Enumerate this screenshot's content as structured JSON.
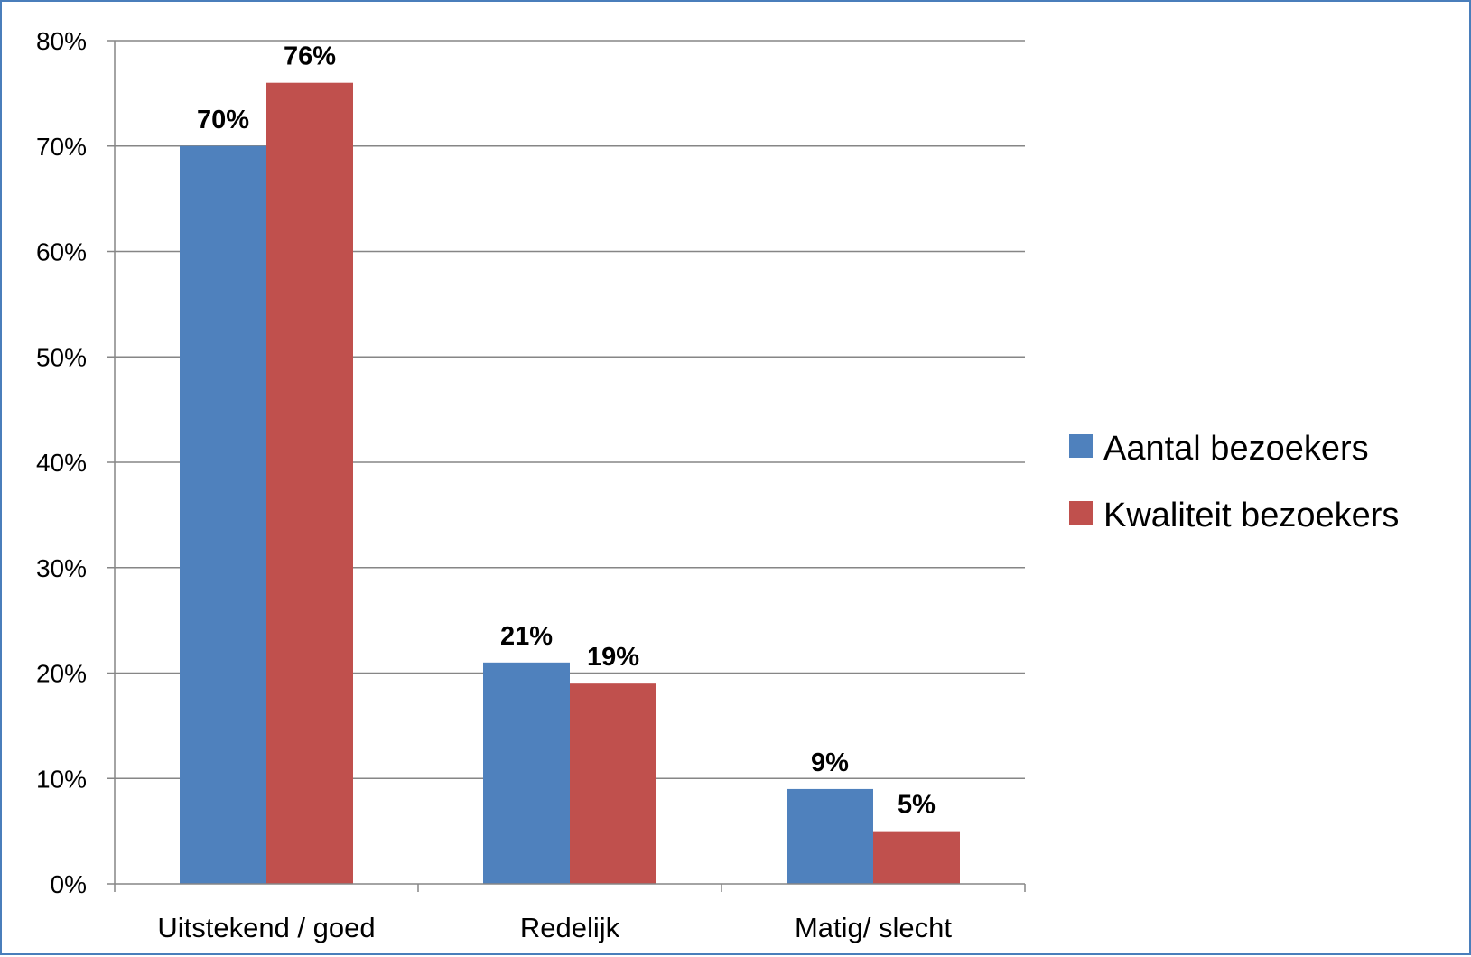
{
  "chart_data": {
    "type": "bar",
    "categories": [
      "Uitstekend / goed",
      "Redelijk",
      "Matig/ slecht"
    ],
    "series": [
      {
        "name": "Aantal bezoekers",
        "color": "#4f81bd",
        "values": [
          70,
          21,
          9
        ],
        "labels": [
          "70%",
          "21%",
          "9%"
        ]
      },
      {
        "name": "Kwaliteit bezoekers",
        "color": "#c0504d",
        "values": [
          76,
          19,
          5
        ],
        "labels": [
          "76%",
          "19%",
          "5%"
        ]
      }
    ],
    "ylim": [
      0,
      80
    ],
    "yticks": [
      0,
      10,
      20,
      30,
      40,
      50,
      60,
      70,
      80
    ],
    "ytick_labels": [
      "0%",
      "10%",
      "20%",
      "30%",
      "40%",
      "50%",
      "60%",
      "70%",
      "80%"
    ],
    "grid": true,
    "legend_position": "right",
    "title": "",
    "xlabel": "",
    "ylabel": ""
  }
}
